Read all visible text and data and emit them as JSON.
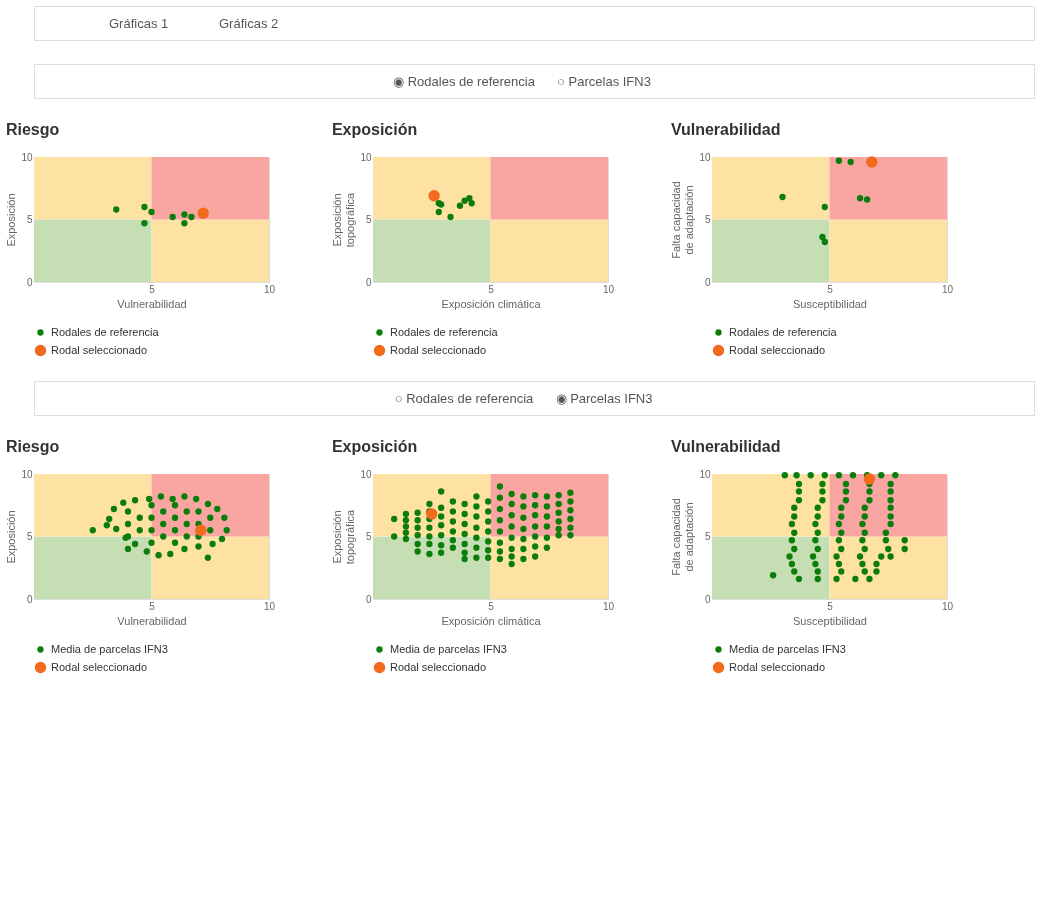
{
  "chart_data": [
    {
      "type": "other",
      "annotations": [
        "Gráficas 1",
        "Gráficas 2"
      ]
    },
    {
      "type": "other",
      "annotations": [
        "◉ Rodales de referencia",
        "○ Parcelas IFN3"
      ]
    },
    {
      "type": "scatter",
      "title": "Riesgo",
      "xlabel": "Vulnerabilidad",
      "ylabel": "Exposición",
      "xlim": [
        0,
        10
      ],
      "xticks": [
        5,
        10
      ],
      "ylim": [
        0,
        10
      ],
      "yticks": [
        0,
        5,
        10
      ],
      "grid": false,
      "legend": "bottom",
      "marker": "circle",
      "series": [
        {
          "name": "Rodales de referencia",
          "color": "#0a7d0a",
          "x": [
            3.5,
            4.7,
            5.0,
            4.7,
            5.9,
            6.4,
            6.7,
            6.4
          ],
          "values": [
            5.8,
            6.0,
            5.6,
            4.7,
            5.2,
            5.4,
            5.2,
            4.7
          ]
        },
        {
          "name": "Rodal seleccionado",
          "color": "#f26a1b",
          "x": [
            7.2
          ],
          "values": [
            5.5
          ]
        }
      ]
    },
    {
      "type": "scatter",
      "title": "Exposición",
      "xlabel": "Exposición climática",
      "ylabel": "Exposición topográfica",
      "xlim": [
        0,
        10
      ],
      "xticks": [
        5,
        10
      ],
      "ylim": [
        0,
        10
      ],
      "yticks": [
        0,
        5,
        10
      ],
      "grid": false,
      "legend": "bottom",
      "marker": "circle",
      "series": [
        {
          "name": "Rodales de referencia",
          "color": "#0a7d0a",
          "x": [
            2.8,
            2.9,
            2.8,
            3.3,
            3.7,
            3.9,
            4.1,
            4.2
          ],
          "values": [
            6.3,
            6.2,
            5.6,
            5.2,
            6.1,
            6.5,
            6.7,
            6.3
          ]
        },
        {
          "name": "Rodal seleccionado",
          "color": "#f26a1b",
          "x": [
            2.6
          ],
          "values": [
            6.9
          ]
        }
      ]
    },
    {
      "type": "scatter",
      "title": "Vulnerabilidad",
      "xlabel": "Susceptibilidad",
      "ylabel": "Falta capacidad de adaptación",
      "xlim": [
        0,
        10
      ],
      "xticks": [
        5,
        10
      ],
      "ylim": [
        0,
        10
      ],
      "yticks": [
        0,
        5,
        10
      ],
      "grid": false,
      "legend": "bottom",
      "marker": "circle",
      "series": [
        {
          "name": "Rodales de referencia",
          "color": "#0a7d0a",
          "x": [
            3.0,
            4.8,
            4.7,
            4.8,
            5.4,
            5.9,
            6.3,
            6.6
          ],
          "values": [
            6.8,
            6.0,
            3.6,
            3.2,
            9.7,
            9.6,
            6.7,
            6.6
          ]
        },
        {
          "name": "Rodal seleccionado",
          "color": "#f26a1b",
          "x": [
            6.8
          ],
          "values": [
            9.6
          ]
        }
      ]
    },
    {
      "type": "other",
      "annotations": [
        "○ Rodales de referencia",
        "◉ Parcelas IFN3"
      ]
    },
    {
      "type": "scatter",
      "title": "Riesgo",
      "xlabel": "Vulnerabilidad",
      "ylabel": "Exposición",
      "xlim": [
        0,
        10
      ],
      "xticks": [
        5,
        10
      ],
      "ylim": [
        0,
        10
      ],
      "yticks": [
        0,
        5,
        10
      ],
      "grid": false,
      "legend": "bottom",
      "marker": "circle",
      "series": [
        {
          "name": "Media de parcelas IFN3",
          "color": "#0a7d0a",
          "x": [
            3.2,
            3.4,
            3.8,
            4.3,
            4.9,
            5.4,
            5.9,
            6.4,
            6.9,
            7.4,
            7.8,
            8.1,
            8.2,
            8.0,
            7.6,
            7.0,
            6.4,
            5.8,
            5.3,
            4.8,
            4.3,
            3.9,
            3.5,
            3.1,
            4.0,
            4.0,
            4.0,
            5.0,
            5.0,
            5.0,
            5.0,
            6.0,
            6.0,
            6.0,
            6.0,
            7.0,
            7.0,
            7.0,
            4.5,
            4.5,
            5.5,
            5.5,
            5.5,
            6.5,
            6.5,
            6.5,
            7.5,
            7.5,
            2.5,
            4.0,
            7.4
          ],
          "values": [
            6.4,
            7.2,
            7.7,
            7.9,
            8.0,
            8.2,
            8.0,
            8.2,
            8.0,
            7.6,
            7.2,
            6.5,
            5.5,
            4.8,
            4.4,
            4.2,
            4.0,
            3.6,
            3.5,
            3.8,
            4.4,
            4.9,
            5.6,
            5.9,
            5.0,
            6.0,
            7.0,
            4.5,
            5.5,
            6.5,
            7.5,
            4.5,
            5.5,
            6.5,
            7.5,
            5.0,
            6.0,
            7.0,
            5.5,
            6.5,
            5.0,
            6.0,
            7.0,
            5.0,
            6.0,
            7.0,
            5.5,
            6.5,
            5.5,
            4.0,
            3.3
          ]
        },
        {
          "name": "Rodal seleccionado",
          "color": "#f26a1b",
          "x": [
            7.1
          ],
          "values": [
            5.5
          ]
        }
      ]
    },
    {
      "type": "scatter",
      "title": "Exposición",
      "xlabel": "Exposición climática",
      "ylabel": "Exposición topográfica",
      "xlim": [
        0,
        10
      ],
      "xticks": [
        5,
        10
      ],
      "ylim": [
        0,
        10
      ],
      "yticks": [
        0,
        5,
        10
      ],
      "grid": false,
      "legend": "bottom",
      "marker": "circle",
      "series": [
        {
          "name": "Media de parcelas IFN3",
          "color": "#0a7d0a",
          "x": [
            0.9,
            0.9,
            1.4,
            1.4,
            1.4,
            1.4,
            1.4,
            1.9,
            1.9,
            1.9,
            1.9,
            1.9,
            1.9,
            2.4,
            2.4,
            2.4,
            2.4,
            2.4,
            2.4,
            2.4,
            2.9,
            2.9,
            2.9,
            2.9,
            2.9,
            2.9,
            2.9,
            3.4,
            3.4,
            3.4,
            3.4,
            3.4,
            3.4,
            3.9,
            3.9,
            3.9,
            3.9,
            3.9,
            3.9,
            3.9,
            4.4,
            4.4,
            4.4,
            4.4,
            4.4,
            4.4,
            4.4,
            4.9,
            4.9,
            4.9,
            4.9,
            4.9,
            4.9,
            4.9,
            5.4,
            5.4,
            5.4,
            5.4,
            5.4,
            5.4,
            5.4,
            5.4,
            5.9,
            5.9,
            5.9,
            5.9,
            5.9,
            5.9,
            5.9,
            5.9,
            6.4,
            6.4,
            6.4,
            6.4,
            6.4,
            6.4,
            6.4,
            6.9,
            6.9,
            6.9,
            6.9,
            6.9,
            6.9,
            6.9,
            7.4,
            7.4,
            7.4,
            7.4,
            7.4,
            7.4,
            7.9,
            7.9,
            7.9,
            7.9,
            7.9,
            7.9,
            8.4,
            8.4,
            8.4,
            8.4,
            8.4,
            8.4
          ],
          "values": [
            6.4,
            5.0,
            6.8,
            6.3,
            5.8,
            5.3,
            4.8,
            6.9,
            6.3,
            5.7,
            5.1,
            4.4,
            3.8,
            7.6,
            7.0,
            6.4,
            5.7,
            5.0,
            4.4,
            3.6,
            8.6,
            7.3,
            6.6,
            5.9,
            5.1,
            4.3,
            3.7,
            7.8,
            7.0,
            6.2,
            5.4,
            4.7,
            4.1,
            7.6,
            6.8,
            6.0,
            5.2,
            4.4,
            3.7,
            3.2,
            8.2,
            7.4,
            6.6,
            5.7,
            4.9,
            4.1,
            3.3,
            7.8,
            7.0,
            6.2,
            5.4,
            4.6,
            3.9,
            3.3,
            9.0,
            8.1,
            7.2,
            6.3,
            5.4,
            4.5,
            3.8,
            3.2,
            8.4,
            7.6,
            6.7,
            5.8,
            4.9,
            4.0,
            3.4,
            2.8,
            8.2,
            7.4,
            6.5,
            5.6,
            4.8,
            4.0,
            3.2,
            8.3,
            7.5,
            6.7,
            5.8,
            5.0,
            4.2,
            3.4,
            8.2,
            7.4,
            6.6,
            5.8,
            4.9,
            4.1,
            8.3,
            7.6,
            6.9,
            6.2,
            5.6,
            5.1,
            8.5,
            7.8,
            7.1,
            6.4,
            5.7,
            5.1
          ]
        },
        {
          "name": "Rodal seleccionado",
          "color": "#f26a1b",
          "x": [
            2.5
          ],
          "values": [
            6.8
          ]
        }
      ]
    },
    {
      "type": "scatter",
      "title": "Vulnerabilidad",
      "xlabel": "Susceptibilidad",
      "ylabel": "Falta capacidad de adaptación",
      "xlim": [
        0,
        10
      ],
      "xticks": [
        5,
        10
      ],
      "ylim": [
        0,
        10
      ],
      "yticks": [
        0,
        5,
        10
      ],
      "grid": false,
      "legend": "bottom",
      "marker": "circle",
      "series": [
        {
          "name": "Media de parcelas IFN3",
          "color": "#0a7d0a",
          "x": [
            3.1,
            3.6,
            4.2,
            4.8,
            5.4,
            6.0,
            6.6,
            7.2,
            7.8,
            3.7,
            4.7,
            5.7,
            6.7,
            7.6,
            3.7,
            4.7,
            5.7,
            6.7,
            7.6,
            3.7,
            4.7,
            5.7,
            6.7,
            7.6,
            3.5,
            4.5,
            5.5,
            6.5,
            7.6,
            3.5,
            4.5,
            5.5,
            6.5,
            7.6,
            3.4,
            4.4,
            5.4,
            6.4,
            7.6,
            3.5,
            4.5,
            5.5,
            6.5,
            7.4,
            3.4,
            4.4,
            5.4,
            6.4,
            7.4,
            8.2,
            3.5,
            4.5,
            5.5,
            6.5,
            7.5,
            8.2,
            3.3,
            4.3,
            5.3,
            6.3,
            7.2,
            7.6,
            3.4,
            4.4,
            5.4,
            6.4,
            7.0,
            3.5,
            4.5,
            5.5,
            6.5,
            7.0,
            3.7,
            4.5,
            5.3,
            6.1,
            6.7,
            2.6
          ],
          "values": [
            9.9,
            9.9,
            9.9,
            9.9,
            9.9,
            9.9,
            9.9,
            9.9,
            9.9,
            9.2,
            9.2,
            9.2,
            9.2,
            9.2,
            8.6,
            8.6,
            8.6,
            8.6,
            8.6,
            7.9,
            7.9,
            7.9,
            7.9,
            7.9,
            7.3,
            7.3,
            7.3,
            7.3,
            7.3,
            6.6,
            6.6,
            6.6,
            6.6,
            6.6,
            6.0,
            6.0,
            6.0,
            6.0,
            6.0,
            5.3,
            5.3,
            5.3,
            5.3,
            5.3,
            4.7,
            4.7,
            4.7,
            4.7,
            4.7,
            4.7,
            4.0,
            4.0,
            4.0,
            4.0,
            4.0,
            4.0,
            3.4,
            3.4,
            3.4,
            3.4,
            3.4,
            3.4,
            2.8,
            2.8,
            2.8,
            2.8,
            2.8,
            2.2,
            2.2,
            2.2,
            2.2,
            2.2,
            1.6,
            1.6,
            1.6,
            1.6,
            1.6,
            1.9
          ]
        },
        {
          "name": "Rodal seleccionado",
          "color": "#f26a1b",
          "x": [
            6.7
          ],
          "values": [
            9.6
          ]
        }
      ]
    }
  ]
}
